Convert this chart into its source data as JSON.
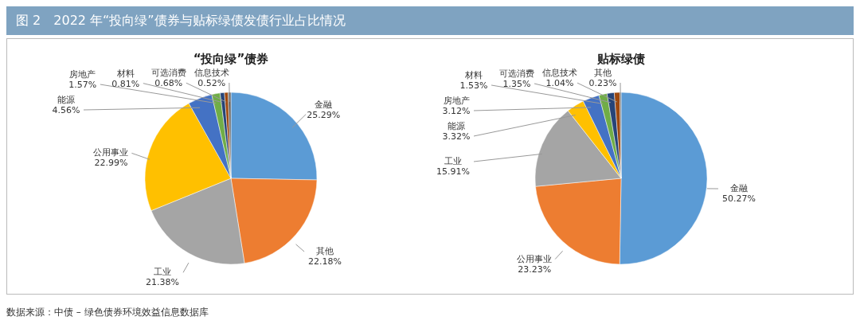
{
  "chart_data": [
    {
      "type": "other",
      "title": "图 2　2022 年“投向绿”债券与贴标绿债发债行业占比情况",
      "annotations": [
        "数据来源：中债 – 绿色债券环境效益信息数据库"
      ]
    },
    {
      "type": "pie",
      "title": "“投向绿”债券",
      "categories": [
        "金融",
        "其他",
        "工业",
        "公用事业",
        "能源",
        "房地产",
        "材料",
        "可选消费",
        "信息技术"
      ],
      "values": [
        25.29,
        22.18,
        21.38,
        22.99,
        4.56,
        1.57,
        0.81,
        0.68,
        0.52
      ],
      "value_labels": [
        "25.29%",
        "22.18%",
        "21.38%",
        "22.99%",
        "4.56%",
        "1.57%",
        "0.81%",
        "0.68%",
        "0.52%"
      ],
      "colors": [
        "#5b9bd5",
        "#ed7d31",
        "#a5a5a5",
        "#ffc000",
        "#4472c4",
        "#70ad47",
        "#264478",
        "#9e480e",
        "#636363"
      ]
    },
    {
      "type": "pie",
      "title": "贴标绿债",
      "categories": [
        "金融",
        "公用事业",
        "工业",
        "能源",
        "房地产",
        "材料",
        "可选消费",
        "信息技术",
        "其他"
      ],
      "values": [
        50.27,
        23.23,
        15.91,
        3.32,
        3.12,
        1.53,
        1.35,
        1.04,
        0.23
      ],
      "value_labels": [
        "50.27%",
        "23.23%",
        "15.91%",
        "3.32%",
        "3.12%",
        "1.53%",
        "1.35%",
        "1.04%",
        "0.23%"
      ],
      "colors": [
        "#5b9bd5",
        "#ed7d31",
        "#a5a5a5",
        "#ffc000",
        "#4472c4",
        "#70ad47",
        "#264478",
        "#9e480e",
        "#636363"
      ]
    }
  ]
}
